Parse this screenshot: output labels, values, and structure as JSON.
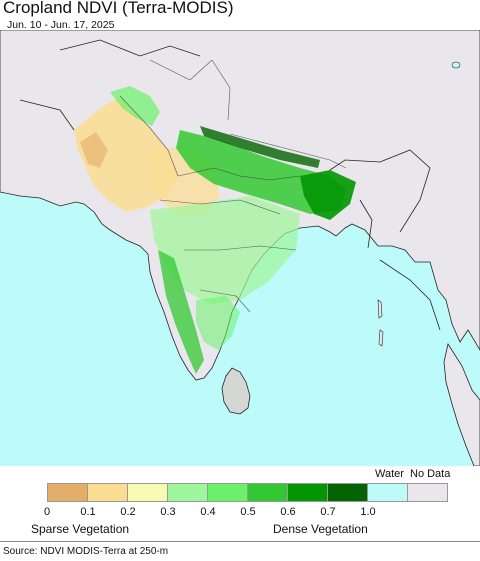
{
  "header": {
    "title": "Cropland NDVI (Terra-MODIS)",
    "subtitle": "Jun. 10 - Jun. 17, 2025"
  },
  "legend": {
    "water_label": "Water",
    "nodata_label": "No Data",
    "colors": [
      "#e3ae67",
      "#fbdd92",
      "#f7fbb2",
      "#9ef79a",
      "#69f269",
      "#32c832",
      "#029602",
      "#026402",
      "#bdfbfb",
      "#eae7ec"
    ],
    "ticks": [
      "0",
      "0.1",
      "0.2",
      "0.3",
      "0.4",
      "0.5",
      "0.6",
      "0.7",
      "1.0"
    ],
    "left_caption": "Sparse Vegetation",
    "right_caption": "Dense Vegetation"
  },
  "map": {
    "sea_color": "#bdfbfb",
    "nodata_color": "#eae7ec",
    "boundary_color": "#222222"
  },
  "footer": {
    "source": "Source: NDVI MODIS-Terra at 250-m"
  }
}
